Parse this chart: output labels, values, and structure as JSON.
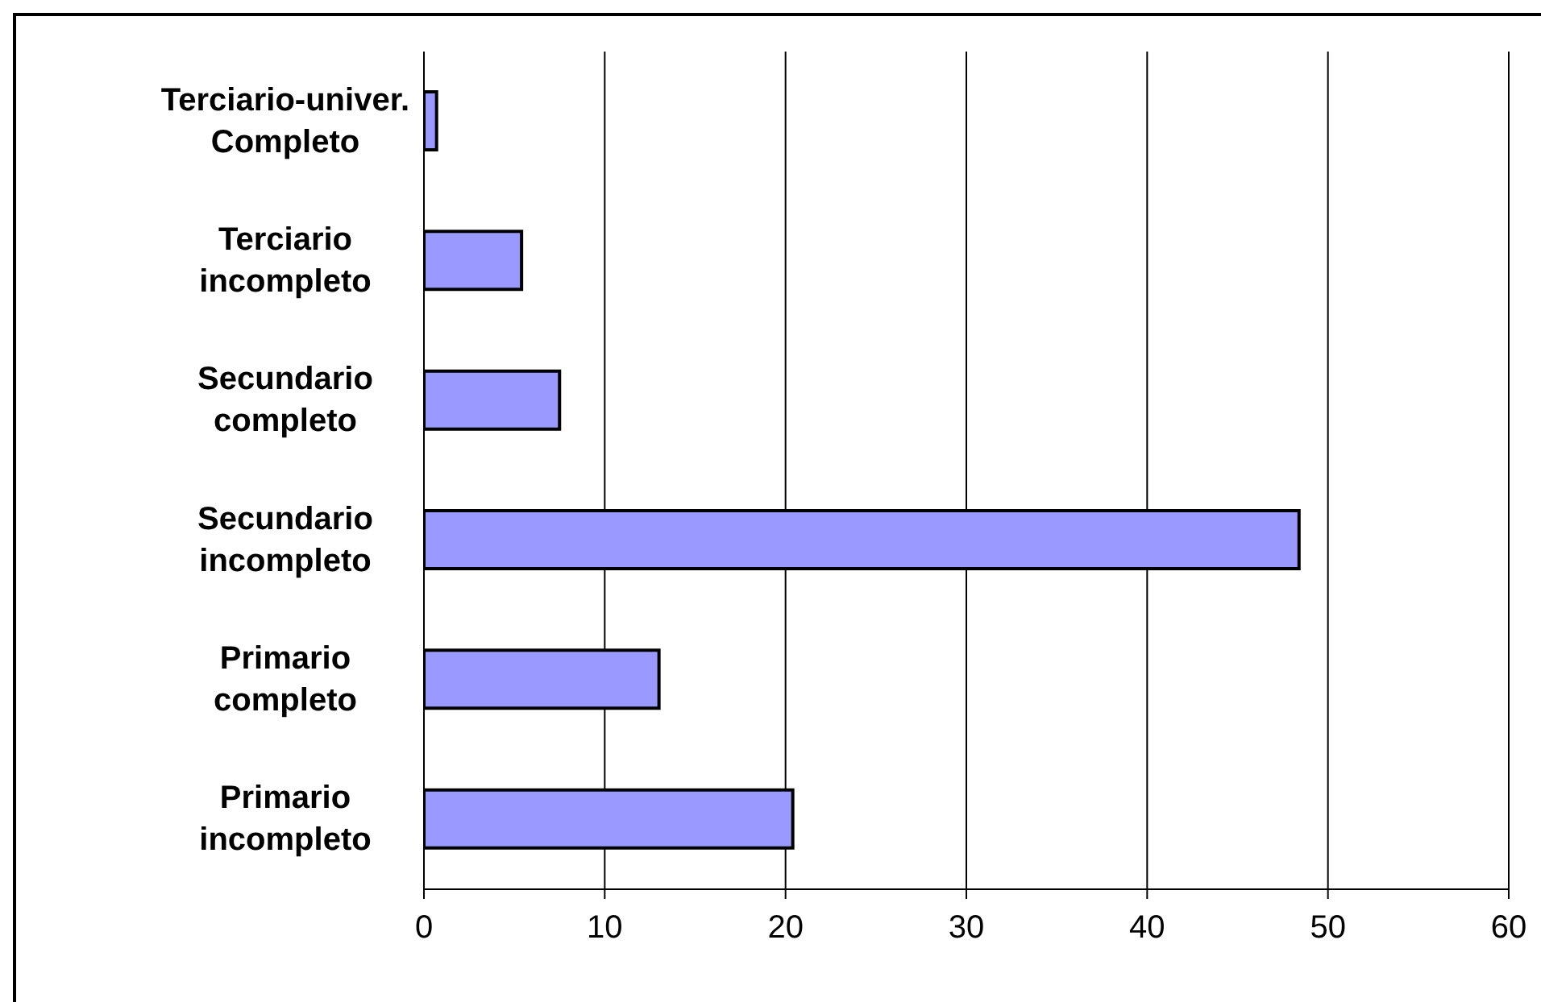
{
  "chart_data": {
    "type": "bar",
    "orientation": "horizontal",
    "categories": [
      "Terciario-univer. Completo",
      "Terciario incompleto",
      "Secundario completo",
      "Secundario incompleto",
      "Primario completo",
      "Primario incompleto"
    ],
    "values": [
      0.7,
      5.4,
      7.5,
      48.4,
      13.0,
      20.4
    ],
    "color": "#9999ff",
    "xlim": [
      0,
      60
    ],
    "xticks": [
      0,
      10,
      20,
      30,
      40,
      50,
      60
    ],
    "grid": "x"
  }
}
